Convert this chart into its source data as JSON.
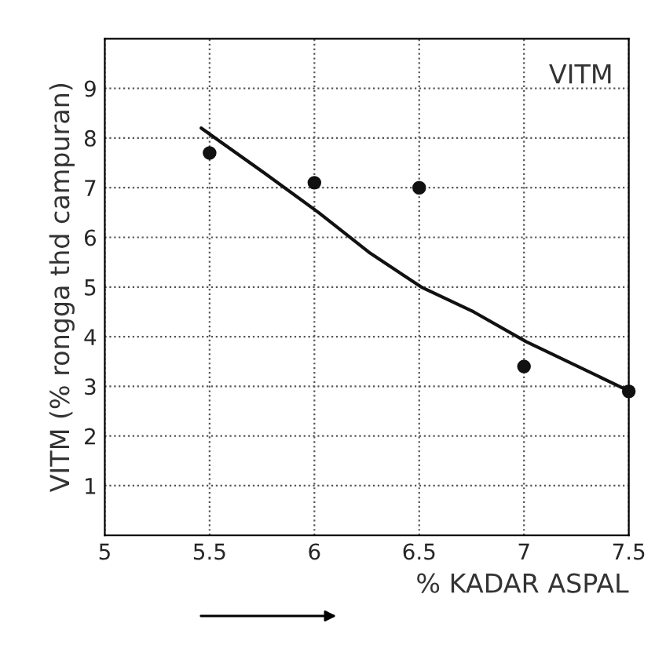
{
  "chart_data": {
    "type": "scatter",
    "xlabel": "% KADAR ASPAL",
    "ylabel": "VITM (% rongga thd campuran)",
    "annotations": [
      "VITM"
    ],
    "xlim": [
      5,
      7.5
    ],
    "xticks": [
      5,
      5.5,
      6,
      6.5,
      7,
      7.5
    ],
    "ylim": [
      0,
      10
    ],
    "yticks": [
      1,
      2,
      3,
      4,
      5,
      6,
      7,
      8,
      9
    ],
    "grid": true,
    "series": [
      {
        "marker": "circle",
        "color": "#111111",
        "x": [
          5.5,
          6,
          6.5,
          7,
          7.5
        ],
        "values": [
          7.7,
          7.1,
          7.0,
          3.4,
          2.9
        ]
      },
      {
        "type": "line",
        "marker": "none",
        "color": "#111111",
        "x": [
          5.46,
          5.76,
          6.02,
          6.26,
          6.51,
          6.76,
          7.01,
          7.48
        ],
        "values": [
          8.2,
          7.3,
          6.5,
          5.7,
          5.0,
          4.5,
          3.9,
          2.95
        ]
      }
    ]
  }
}
